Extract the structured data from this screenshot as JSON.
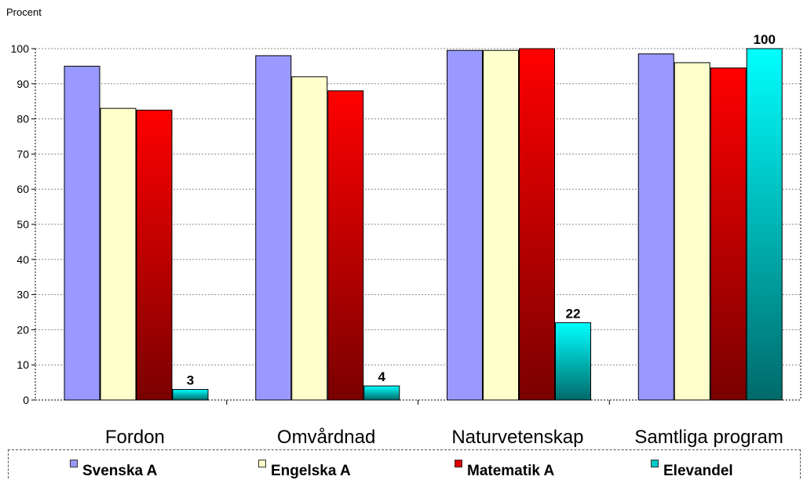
{
  "chart_data": {
    "type": "bar",
    "ylabel": "Procent",
    "ylim": [
      0,
      100
    ],
    "yticks": [
      0,
      10,
      20,
      30,
      40,
      50,
      60,
      70,
      80,
      90,
      100
    ],
    "grid": true,
    "legend_position": "bottom",
    "categories": [
      "Fordon",
      "Omvårdnad",
      "Naturvetenskap",
      "Samtliga program"
    ],
    "series": [
      {
        "name": "Svenska A",
        "values": [
          95,
          98,
          99.5,
          98.5
        ],
        "color": "#9999ff"
      },
      {
        "name": "Engelska A",
        "values": [
          83,
          92,
          99.5,
          96
        ],
        "color": "#ffffcc"
      },
      {
        "name": "Matematik A",
        "values": [
          82.5,
          88,
          100,
          94.5
        ],
        "color": "#e00000"
      },
      {
        "name": "Elevandel",
        "values": [
          3,
          4,
          22,
          100
        ],
        "color": "#00d5d5",
        "data_labels": [
          "3",
          "4",
          "22",
          "100"
        ]
      }
    ]
  }
}
